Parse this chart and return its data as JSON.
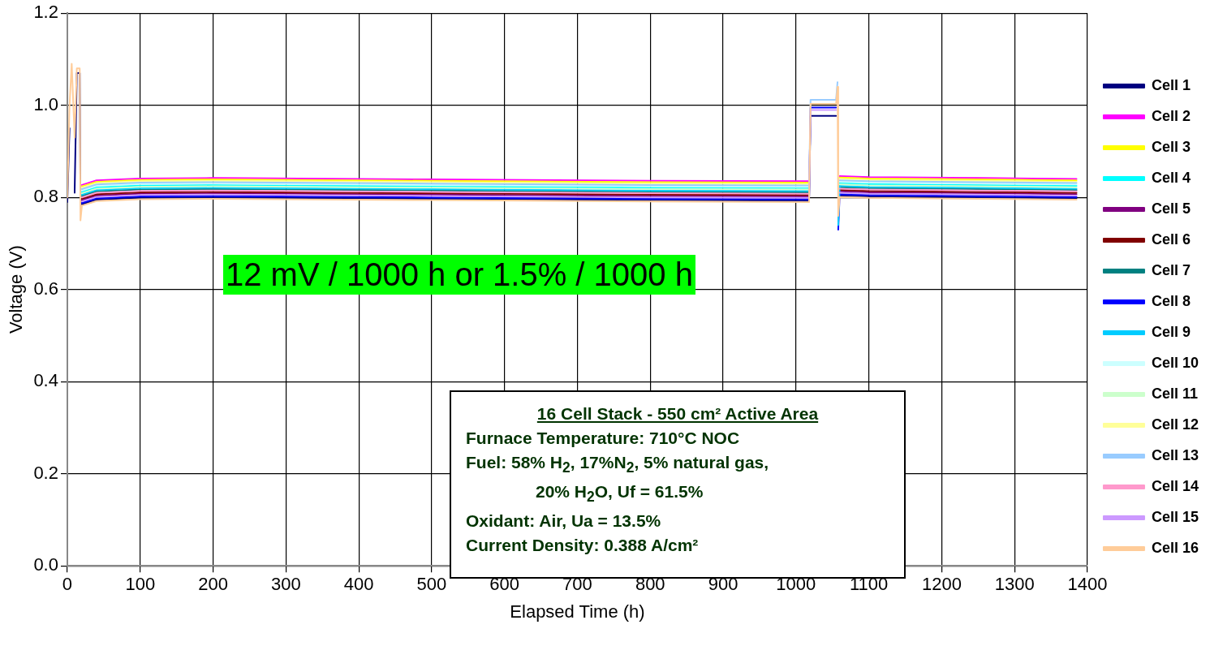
{
  "chart_data": {
    "type": "line",
    "xlabel": "Elapsed Time (h)",
    "ylabel": "Voltage (V)",
    "x": [
      0,
      3,
      6,
      10,
      13,
      17,
      18,
      20,
      40,
      100,
      200,
      500,
      800,
      1018,
      1020,
      1055,
      1057,
      1058,
      1060,
      1100,
      1250,
      1385
    ],
    "xlim": [
      0,
      1400
    ],
    "xticks": [
      0,
      100,
      200,
      300,
      400,
      500,
      600,
      700,
      800,
      900,
      1000,
      1100,
      1200,
      1300,
      1400
    ],
    "ylim": [
      0,
      1.2
    ],
    "yticks": [
      {
        "value": 0,
        "label": "0.0"
      },
      0.2,
      0.4,
      0.6,
      0.8,
      {
        "value": 1,
        "label": "1.0"
      },
      1.2
    ],
    "grid": true,
    "legend": "right",
    "marker": "none",
    "line_style": "solid",
    "annotations": [
      "12 mV / 1000 h or 1.5% / 1000 h",
      "16 Cell Stack - 550 cm² Active Area",
      "Furnace Temperature: 710°C NOC",
      "Fuel: 58% H$_{2}$, 17%N$_{2}$, 5% natural gas,",
      "20% H$_{2}$O, Uf = 61.5%",
      "Oxidant: Air, Ua = 13.5%",
      "Current Density: 0.388 A/cm²"
    ],
    "series": [
      {
        "name": "Cell 1",
        "color": "#000080",
        "values": [
          0.79,
          0.95,
          null,
          0.81,
          1.07,
          1.07,
          0.8,
          0.785,
          0.795,
          0.799,
          0.8,
          0.797,
          0.794,
          0.793,
          0.977,
          0.977,
          null,
          null,
          0.804,
          0.802,
          0.8,
          0.798
        ]
      },
      {
        "name": "Cell 2",
        "color": "#ff00ff",
        "values": [
          null,
          null,
          null,
          null,
          null,
          null,
          null,
          0.827,
          0.837,
          0.841,
          0.842,
          0.839,
          0.836,
          0.835,
          null,
          null,
          null,
          null,
          0.846,
          0.844,
          0.842,
          0.84
        ]
      },
      {
        "name": "Cell 3",
        "color": "#ffff00",
        "values": [
          null,
          null,
          null,
          null,
          null,
          null,
          null,
          0.824,
          0.834,
          0.838,
          0.839,
          0.836,
          0.833,
          0.832,
          null,
          null,
          null,
          null,
          0.843,
          0.841,
          0.839,
          0.837
        ]
      },
      {
        "name": "Cell 4",
        "color": "#00ffff",
        "values": [
          null,
          null,
          null,
          null,
          null,
          null,
          null,
          0.812,
          0.822,
          0.826,
          0.827,
          0.824,
          0.821,
          0.82,
          null,
          null,
          null,
          null,
          0.831,
          0.829,
          0.827,
          0.825
        ]
      },
      {
        "name": "Cell 5",
        "color": "#800080",
        "values": [
          null,
          null,
          null,
          null,
          null,
          null,
          null,
          0.794,
          0.804,
          0.808,
          0.809,
          0.806,
          0.803,
          0.802,
          null,
          null,
          null,
          null,
          0.813,
          0.811,
          0.809,
          0.807
        ]
      },
      {
        "name": "Cell 6",
        "color": "#800000",
        "values": [
          null,
          null,
          null,
          null,
          null,
          null,
          null,
          0.797,
          0.807,
          0.811,
          0.812,
          0.809,
          0.806,
          0.805,
          null,
          null,
          null,
          null,
          0.816,
          0.814,
          0.812,
          0.81
        ]
      },
      {
        "name": "Cell 7",
        "color": "#008080",
        "values": [
          null,
          null,
          null,
          null,
          null,
          null,
          null,
          0.803,
          0.813,
          0.817,
          0.818,
          0.815,
          0.812,
          0.811,
          null,
          null,
          null,
          null,
          0.822,
          0.82,
          0.818,
          0.816
        ]
      },
      {
        "name": "Cell 8",
        "color": "#0000ff",
        "values": [
          null,
          null,
          null,
          null,
          null,
          null,
          null,
          0.788,
          0.798,
          0.802,
          0.803,
          0.8,
          0.797,
          0.796,
          0.995,
          0.995,
          null,
          0.73,
          0.807,
          0.805,
          0.803,
          0.801
        ]
      },
      {
        "name": "Cell 9",
        "color": "#00ccff",
        "values": [
          null,
          null,
          null,
          null,
          null,
          null,
          null,
          0.806,
          0.816,
          0.82,
          0.821,
          0.818,
          0.815,
          0.814,
          null,
          null,
          null,
          0.74,
          0.825,
          0.823,
          0.821,
          0.819
        ]
      },
      {
        "name": "Cell 10",
        "color": "#ccffff",
        "values": [
          null,
          null,
          null,
          null,
          null,
          null,
          null,
          0.815,
          0.825,
          0.829,
          0.83,
          0.827,
          0.824,
          0.823,
          null,
          null,
          null,
          null,
          0.834,
          0.832,
          0.83,
          0.828
        ]
      },
      {
        "name": "Cell 11",
        "color": "#ccffcc",
        "values": [
          null,
          null,
          null,
          null,
          null,
          null,
          null,
          0.809,
          0.819,
          0.823,
          0.824,
          0.821,
          0.818,
          0.817,
          null,
          null,
          null,
          null,
          0.828,
          0.826,
          0.824,
          0.822
        ]
      },
      {
        "name": "Cell 12",
        "color": "#ffff99",
        "values": [
          null,
          null,
          null,
          null,
          null,
          null,
          null,
          0.821,
          0.831,
          0.835,
          0.836,
          0.833,
          0.83,
          0.829,
          null,
          null,
          null,
          null,
          0.84,
          0.838,
          0.836,
          0.834
        ]
      },
      {
        "name": "Cell 13",
        "color": "#99ccff",
        "values": [
          null,
          null,
          null,
          null,
          null,
          null,
          null,
          0.818,
          0.828,
          0.832,
          0.833,
          0.83,
          0.827,
          0.826,
          1.012,
          1.012,
          1.05,
          null,
          0.837,
          0.835,
          0.833,
          0.831
        ]
      },
      {
        "name": "Cell 14",
        "color": "#ff99cc",
        "values": [
          null,
          null,
          null,
          null,
          null,
          null,
          null,
          0.8,
          0.81,
          0.814,
          0.815,
          0.812,
          0.809,
          0.808,
          null,
          null,
          null,
          null,
          0.819,
          0.817,
          0.815,
          0.813
        ]
      },
      {
        "name": "Cell 15",
        "color": "#cc99ff",
        "values": [
          null,
          null,
          null,
          null,
          null,
          null,
          null,
          0.791,
          0.801,
          0.805,
          0.806,
          0.803,
          0.8,
          0.799,
          0.99,
          0.99,
          null,
          null,
          0.81,
          0.808,
          0.806,
          0.804
        ]
      },
      {
        "name": "Cell 16",
        "color": "#ffcc99",
        "values": [
          0.8,
          1.0,
          1.09,
          0.93,
          1.08,
          1.08,
          0.75,
          0.782,
          0.792,
          0.796,
          0.797,
          0.794,
          0.791,
          0.79,
          1.003,
          1.003,
          1.04,
          0.76,
          0.801,
          0.799,
          0.797,
          0.795
        ]
      }
    ]
  }
}
